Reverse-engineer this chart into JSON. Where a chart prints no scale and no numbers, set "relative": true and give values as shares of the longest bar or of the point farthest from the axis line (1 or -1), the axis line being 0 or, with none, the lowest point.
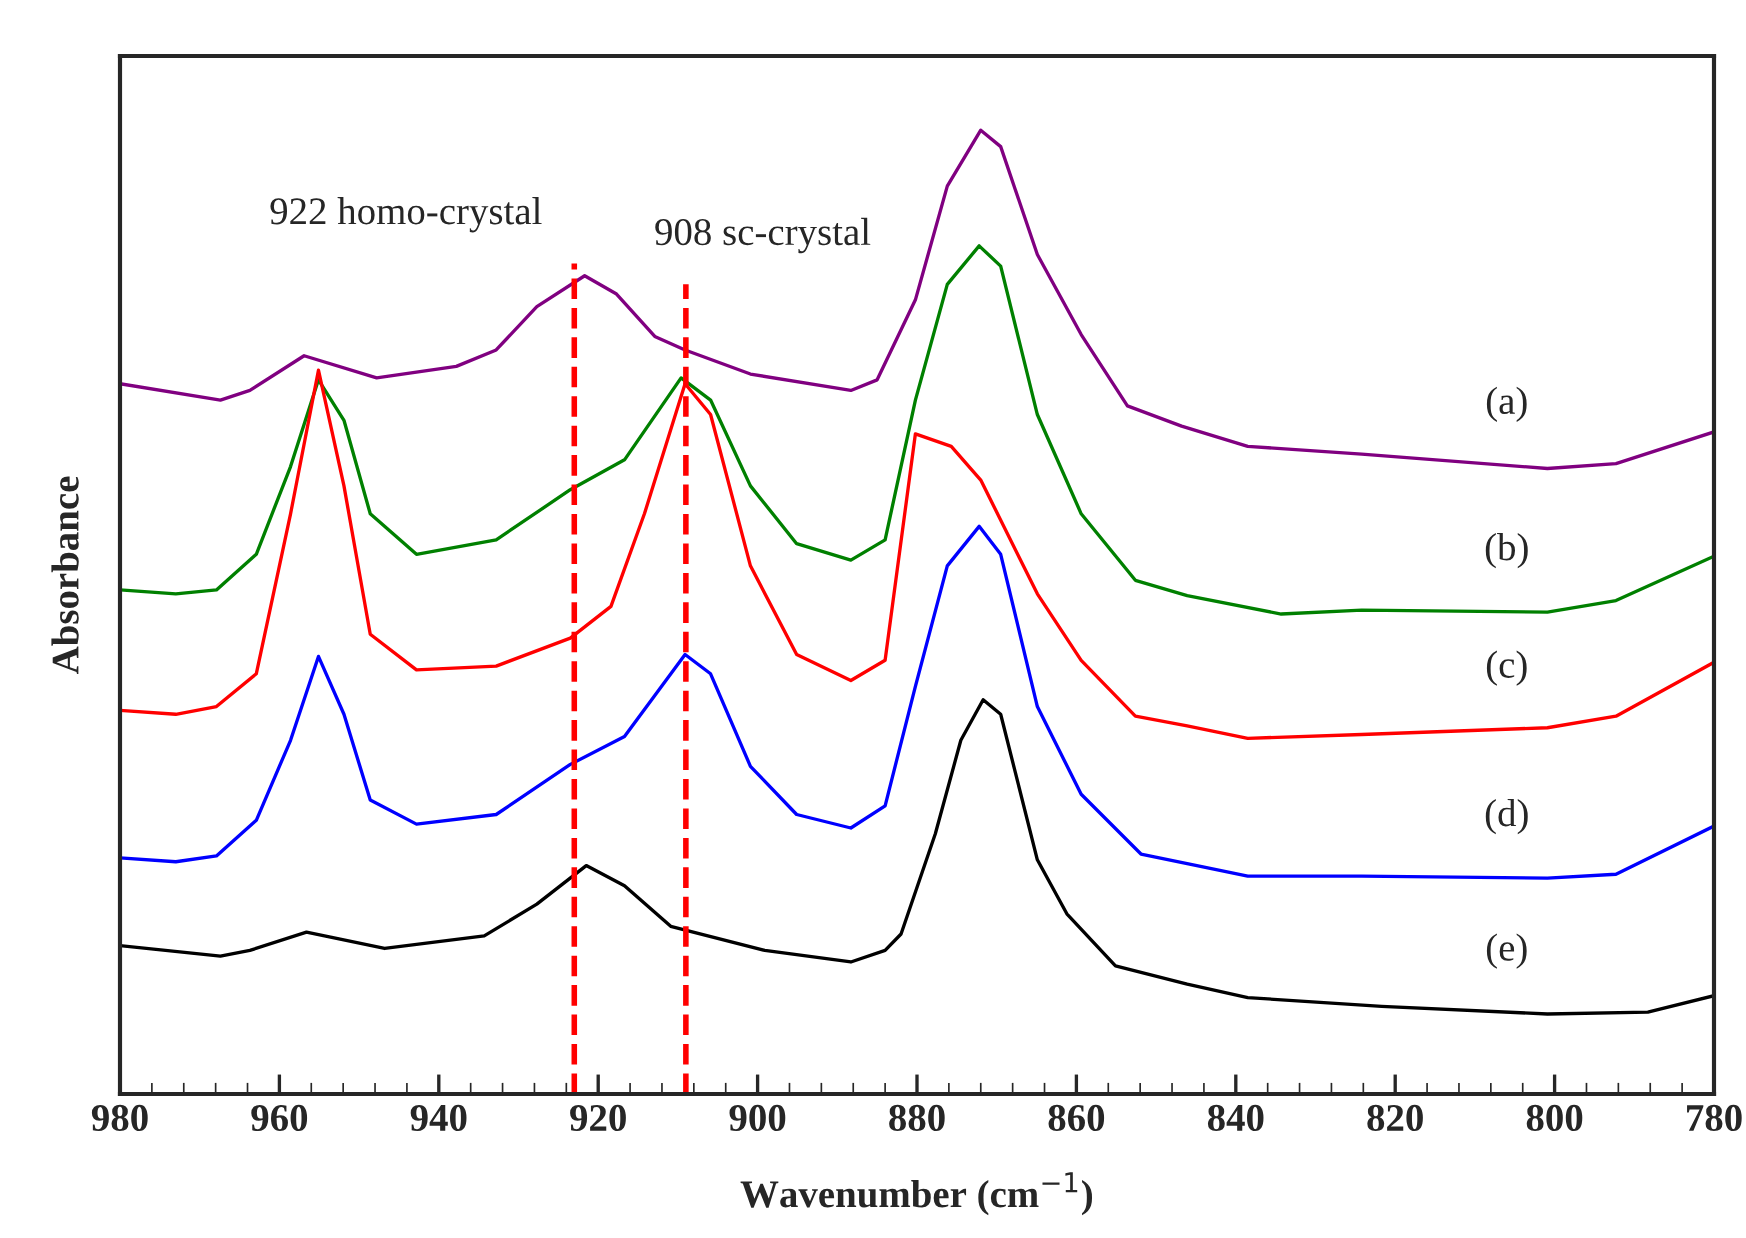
{
  "chart_data": {
    "type": "line",
    "relative": true,
    "xlabel": "Wavenumber (cm$^{−1}$)",
    "ylabel": "Absorbance",
    "xlim": [
      980,
      780
    ],
    "xticks": [
      980,
      960,
      940,
      920,
      900,
      880,
      860,
      840,
      820,
      800,
      780
    ],
    "grid": false,
    "legend": false,
    "marker": "none",
    "line_style": "solid",
    "series": [
      {
        "name": "(a)",
        "color": "#800080",
        "x": [
          980,
          967.4,
          963.7,
          956.9,
          947.8,
          937.8,
          932.8,
          927.7,
          921.7,
          917.7,
          912.9,
          909.1,
          900.9,
          888.3,
          885.0,
          880.2,
          876.2,
          872.0,
          869.5,
          864.9,
          859.4,
          853.6,
          846.8,
          838.5,
          824.2,
          800.9,
          792.3,
          780
        ],
        "values": [
          0.737,
          0.72,
          0.73,
          0.766,
          0.743,
          0.755,
          0.772,
          0.817,
          0.849,
          0.83,
          0.786,
          0.772,
          0.747,
          0.73,
          0.741,
          0.824,
          0.942,
          1.0,
          0.983,
          0.871,
          0.788,
          0.714,
          0.693,
          0.672,
          0.664,
          0.649,
          0.654,
          0.687
        ]
      },
      {
        "name": "(b)",
        "color": "#008000",
        "x": [
          980,
          973.0,
          967.9,
          962.9,
          958.6,
          955.1,
          951.9,
          948.6,
          942.8,
          932.8,
          923.5,
          916.7,
          909.6,
          905.9,
          900.9,
          895.1,
          888.3,
          884.0,
          880.2,
          876.2,
          872.2,
          869.5,
          864.9,
          859.4,
          852.6,
          846.1,
          834.3,
          824.2,
          800.9,
          792.3,
          780
        ],
        "values": [
          0.523,
          0.519,
          0.523,
          0.56,
          0.651,
          0.741,
          0.699,
          0.602,
          0.56,
          0.575,
          0.627,
          0.658,
          0.743,
          0.72,
          0.631,
          0.571,
          0.554,
          0.575,
          0.72,
          0.84,
          0.88,
          0.859,
          0.705,
          0.602,
          0.533,
          0.517,
          0.498,
          0.502,
          0.5,
          0.512,
          0.558
        ]
      },
      {
        "name": "(c)",
        "color": "#ff0000",
        "x": [
          980,
          973.0,
          967.9,
          962.9,
          958.6,
          955.1,
          951.9,
          948.6,
          942.8,
          932.8,
          923.5,
          918.4,
          914.2,
          909.1,
          905.9,
          900.9,
          895.1,
          888.3,
          884.0,
          880.2,
          875.7,
          872.0,
          864.9,
          859.4,
          852.6,
          846.1,
          838.5,
          824.2,
          800.9,
          792.3,
          780
        ],
        "values": [
          0.398,
          0.394,
          0.402,
          0.436,
          0.602,
          0.751,
          0.631,
          0.477,
          0.44,
          0.444,
          0.473,
          0.506,
          0.602,
          0.737,
          0.705,
          0.548,
          0.456,
          0.429,
          0.45,
          0.685,
          0.672,
          0.637,
          0.519,
          0.45,
          0.392,
          0.382,
          0.369,
          0.373,
          0.38,
          0.392,
          0.448
        ]
      },
      {
        "name": "(d)",
        "color": "#0000ff",
        "x": [
          980,
          973.0,
          967.9,
          962.9,
          958.6,
          955.1,
          951.9,
          948.6,
          942.8,
          932.8,
          923.5,
          916.7,
          909.1,
          905.9,
          900.9,
          895.1,
          888.3,
          884.0,
          880.2,
          876.2,
          872.2,
          869.5,
          864.9,
          859.4,
          851.9,
          846.1,
          838.5,
          824.2,
          800.9,
          792.3,
          780
        ],
        "values": [
          0.245,
          0.241,
          0.247,
          0.284,
          0.367,
          0.454,
          0.394,
          0.305,
          0.28,
          0.29,
          0.342,
          0.371,
          0.456,
          0.436,
          0.34,
          0.29,
          0.276,
          0.299,
          0.423,
          0.548,
          0.589,
          0.56,
          0.402,
          0.311,
          0.249,
          0.239,
          0.226,
          0.226,
          0.224,
          0.228,
          0.278
        ]
      },
      {
        "name": "(e)",
        "color": "#000000",
        "x": [
          980,
          967.4,
          963.7,
          956.6,
          946.8,
          934.3,
          927.7,
          921.5,
          916.7,
          910.9,
          899.1,
          888.3,
          884.0,
          882.0,
          877.7,
          874.5,
          871.7,
          869.5,
          864.9,
          861.2,
          855.1,
          846.1,
          838.5,
          821.7,
          800.9,
          788.3,
          780
        ],
        "values": [
          0.154,
          0.143,
          0.149,
          0.168,
          0.151,
          0.164,
          0.197,
          0.237,
          0.216,
          0.174,
          0.149,
          0.137,
          0.149,
          0.166,
          0.27,
          0.367,
          0.409,
          0.394,
          0.243,
          0.187,
          0.133,
          0.114,
          0.1,
          0.091,
          0.083,
          0.085,
          0.102
        ]
      }
    ],
    "ref_lines": [
      {
        "axis": "x",
        "value": 923,
        "label": "922 homo-crystal",
        "color": "#ff0000",
        "line_style": "dashed"
      },
      {
        "axis": "x",
        "value": 909,
        "label": "908 sc-crystal",
        "color": "#ff0000",
        "line_style": "dashed"
      }
    ]
  }
}
